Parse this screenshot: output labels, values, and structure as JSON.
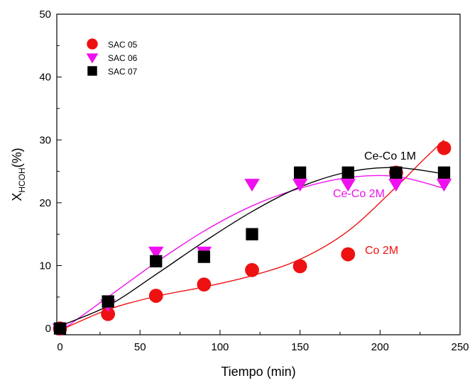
{
  "chart_data": {
    "type": "scatter",
    "xlabel": "Tiempo (min)",
    "ylabel_main": "X",
    "ylabel_sub": "HCOH",
    "ylabel_suffix": "(%)",
    "xlim": [
      -2,
      250
    ],
    "ylim": [
      -1,
      50
    ],
    "xticks": [
      0,
      50,
      100,
      150,
      200,
      250
    ],
    "yticks": [
      0,
      10,
      20,
      30,
      40,
      50
    ],
    "grid": false,
    "legend_position": "top-left",
    "series": [
      {
        "name": "SAC 05",
        "marker": "circle",
        "color": "#ee1111",
        "x": [
          0,
          30,
          60,
          90,
          120,
          150,
          180,
          210,
          240
        ],
        "y": [
          0,
          2.3,
          5.2,
          7.0,
          9.3,
          9.9,
          11.8,
          24.8,
          28.7
        ],
        "fit_label": "Co 2M",
        "fit_x": [
          0,
          30,
          60,
          90,
          120,
          150,
          180,
          210,
          225,
          240
        ],
        "fit_y": [
          -0.3,
          3.0,
          5.1,
          6.6,
          8.4,
          11.0,
          15.5,
          22.5,
          26.3,
          30.0
        ]
      },
      {
        "name": "SAC 06",
        "marker": "triangle-down",
        "color": "#ee11ee",
        "x": [
          0,
          30,
          60,
          90,
          120,
          150,
          180,
          210,
          240
        ],
        "y": [
          0,
          3.8,
          12.2,
          12.2,
          23.0,
          23.0,
          23.0,
          23.0,
          23.0
        ],
        "fit_label": "Ce-Co 2M",
        "fit_x": [
          0,
          30,
          60,
          90,
          120,
          150,
          180,
          210,
          240
        ],
        "fit_y": [
          -0.5,
          5.0,
          10.5,
          15.5,
          19.5,
          22.3,
          24.0,
          24.2,
          22.3
        ]
      },
      {
        "name": "SAC 07",
        "marker": "square",
        "color": "#000000",
        "x": [
          0,
          30,
          60,
          90,
          120,
          150,
          180,
          210,
          240
        ],
        "y": [
          0,
          4.3,
          10.7,
          11.4,
          15.0,
          24.8,
          24.8,
          24.8,
          24.8
        ],
        "fit_label": "Ce-Co 1M",
        "fit_x": [
          0,
          30,
          60,
          90,
          120,
          150,
          180,
          210,
          240
        ],
        "fit_y": [
          0.4,
          3.6,
          8.6,
          13.8,
          18.6,
          22.5,
          24.9,
          25.6,
          24.6
        ]
      }
    ]
  }
}
